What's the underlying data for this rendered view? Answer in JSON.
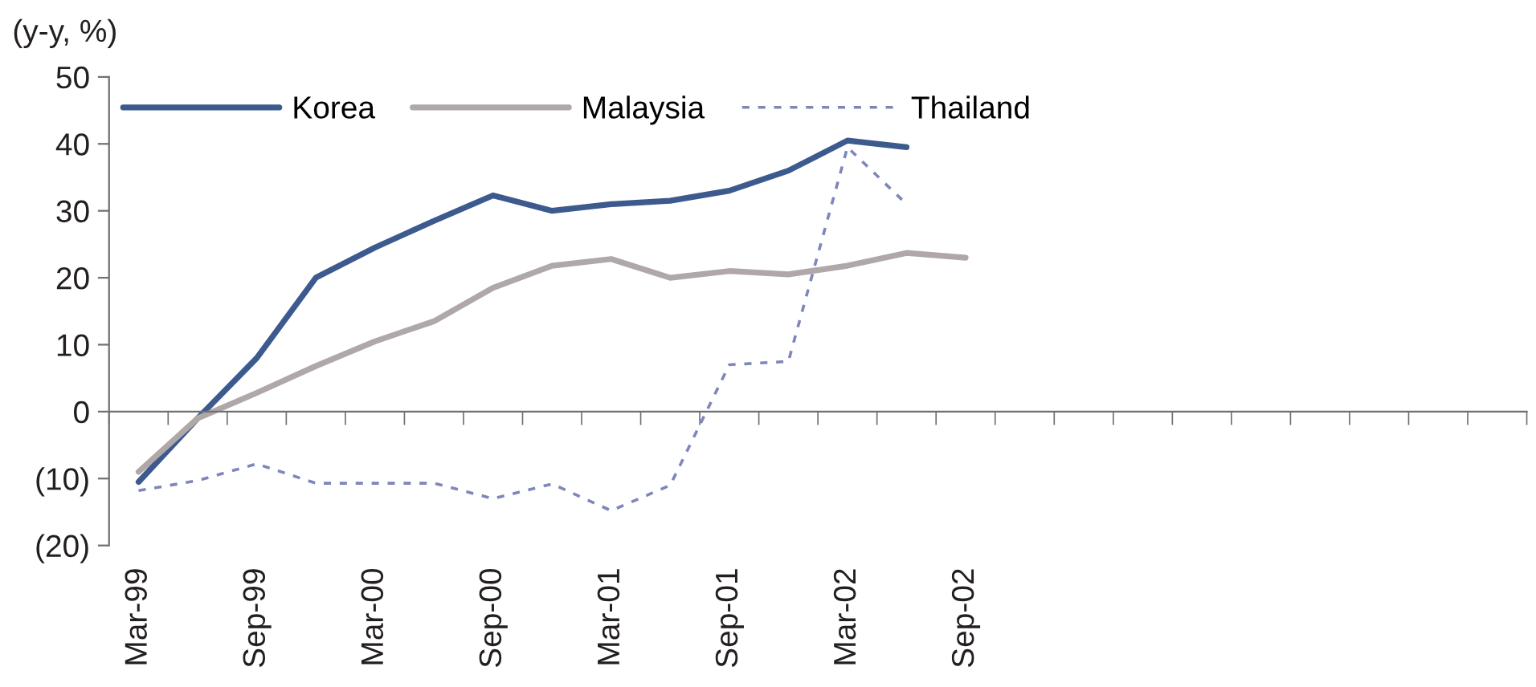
{
  "chart_data": {
    "type": "line",
    "ylabel": "(y-y, %)",
    "categories": [
      "Mar-99",
      null,
      "Sep-99",
      null,
      "Mar-00",
      null,
      "Sep-00",
      null,
      "Mar-01",
      null,
      "Sep-01",
      null,
      "Mar-02",
      null,
      "Sep-02",
      null,
      null,
      null,
      null,
      null,
      null,
      null,
      null,
      null
    ],
    "series": [
      {
        "name": "Korea",
        "color": "#3d5a8e",
        "line_style": "solid",
        "values": [
          -10.5,
          -1,
          8,
          20,
          24.5,
          28.5,
          32.3,
          30,
          31,
          31.5,
          33,
          36,
          40.5,
          39.5,
          null,
          null,
          null,
          null,
          null,
          null,
          null,
          null,
          null,
          null
        ]
      },
      {
        "name": "Malaysia",
        "color": "#b0a8a8",
        "line_style": "solid",
        "values": [
          -9,
          -1,
          2.8,
          6.8,
          10.5,
          13.5,
          18.5,
          21.8,
          22.8,
          20,
          21,
          20.5,
          21.8,
          23.7,
          23,
          null,
          null,
          null,
          null,
          null,
          null,
          null,
          null,
          null
        ]
      },
      {
        "name": "Thailand",
        "color": "#7f86bb",
        "line_style": "dashed",
        "values": [
          -11.8,
          -10.3,
          -7.8,
          -10.7,
          -10.7,
          -10.7,
          -13,
          -10.8,
          -14.8,
          -11,
          7,
          7.5,
          39.5,
          31,
          null,
          null,
          null,
          null,
          null,
          null,
          null,
          null,
          null,
          null
        ]
      }
    ],
    "ylim": [
      -20,
      50
    ],
    "yticks": [
      {
        "value": -20,
        "label": "(20)"
      },
      {
        "value": -10,
        "label": "(10)"
      },
      0,
      10,
      20,
      30,
      40,
      50
    ],
    "legend": "top",
    "marker": "none"
  }
}
